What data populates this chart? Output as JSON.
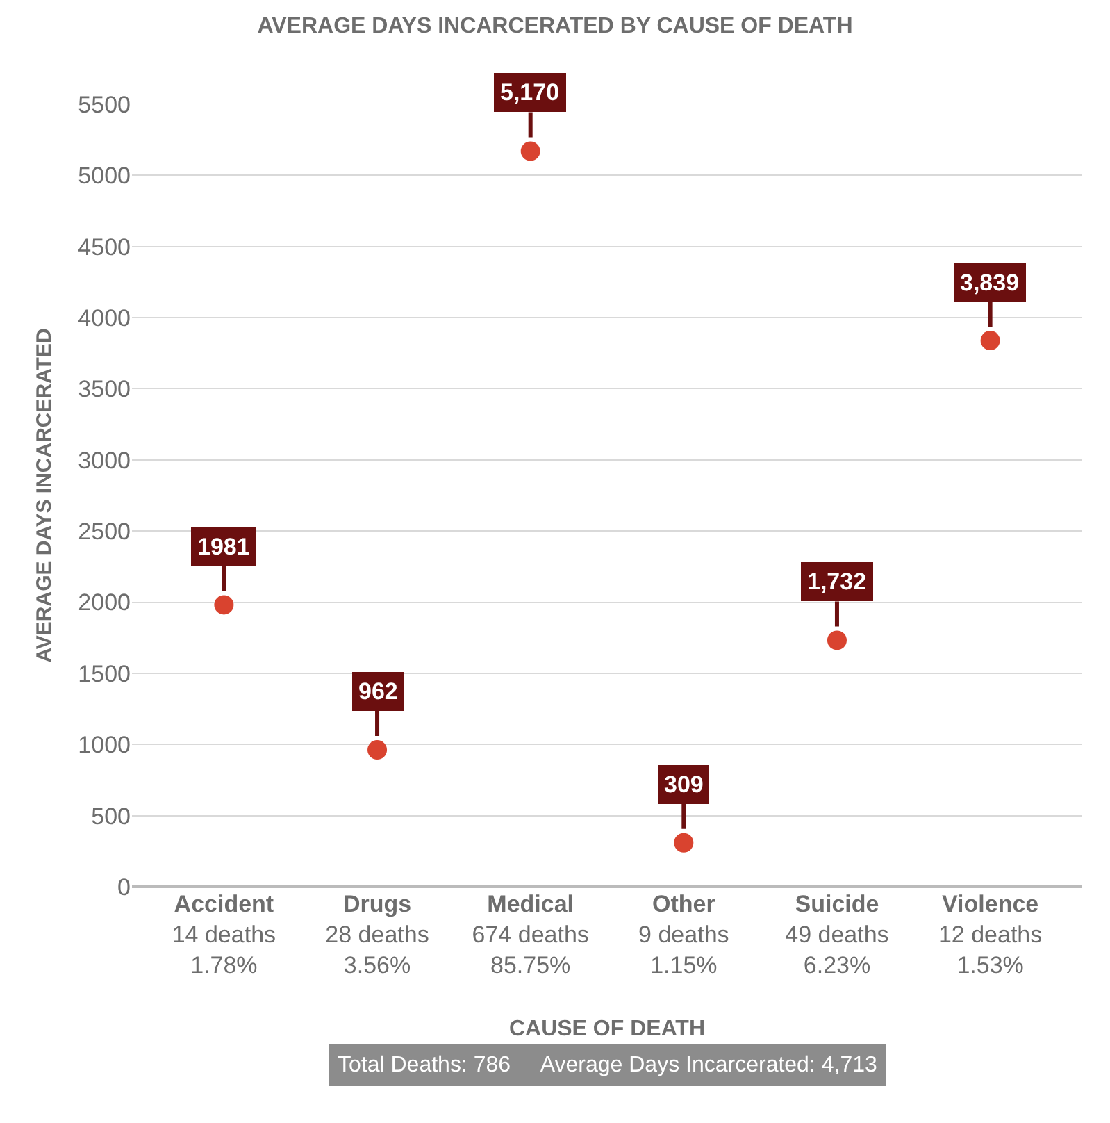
{
  "chart_data": {
    "type": "scatter",
    "title": "AVERAGE DAYS INCARCERATED BY CAUSE OF DEATH",
    "xlabel": "CAUSE OF DEATH",
    "ylabel": "AVERAGE DAYS INCARCERATED",
    "categories": [
      "Accident\n14 deaths\n1.78%",
      "Drugs\n28 deaths\n3.56%",
      "Medical\n674 deaths\n85.75%",
      "Other\n9 deaths\n1.15%",
      "Suicide\n49 deaths\n6.23%",
      "Violence\n12 deaths\n1.53%"
    ],
    "series": [
      {
        "color": "#d9432f",
        "values": [
          1981,
          962,
          5170,
          309,
          1732,
          3839
        ],
        "value_labels": [
          "1981",
          "962",
          "5,170",
          "309",
          "1,732",
          "3,839"
        ]
      }
    ],
    "ylim": [
      0,
      5500
    ],
    "yticks": [
      0,
      500,
      1000,
      1500,
      2000,
      2500,
      3000,
      3500,
      4000,
      4500,
      5000,
      5500
    ],
    "grid": "y",
    "marker": "circle",
    "annotations": [
      "Total Deaths: 786     Average Days Incarcerated: 4,713"
    ]
  }
}
